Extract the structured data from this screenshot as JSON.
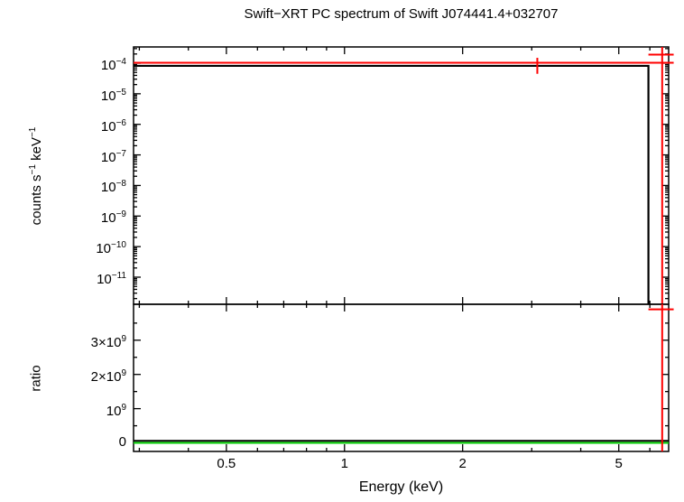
{
  "title": "Swift−XRT PC spectrum of Swift J074441.4+032707",
  "colors": {
    "frame": "#000000",
    "data": "#000000",
    "model": "#ff0000",
    "reference": "#00cc00"
  },
  "chart_data": {
    "type": "line",
    "title": "Swift−XRT PC spectrum of Swift J074441.4+032707",
    "xlabel": "Energy (keV)",
    "xscale": "log",
    "xlim": [
      0.29,
      6.7
    ],
    "xticks_major": [
      {
        "v": 0.5,
        "label": "0.5"
      },
      {
        "v": 1,
        "label": "1"
      },
      {
        "v": 2,
        "label": "2"
      },
      {
        "v": 5,
        "label": "5"
      }
    ],
    "xticks_minor": [
      0.3,
      0.4,
      0.6,
      0.7,
      0.8,
      0.9,
      3,
      4,
      6
    ],
    "panels": [
      {
        "id": "spectrum",
        "ylabel_parts": [
          "counts s",
          "−1",
          " keV",
          "−1"
        ],
        "yscale": "log",
        "ylim": [
          1.3e-12,
          0.00034
        ],
        "yticks_major": [
          {
            "v": 0.0001,
            "label_parts": [
              "10",
              "−4"
            ]
          },
          {
            "v": 1e-05,
            "label_parts": [
              "10",
              "−5"
            ]
          },
          {
            "v": 1e-06,
            "label_parts": [
              "10",
              "−6"
            ]
          },
          {
            "v": 1e-07,
            "label_parts": [
              "10",
              "−7"
            ]
          },
          {
            "v": 1e-08,
            "label_parts": [
              "10",
              "−8"
            ]
          },
          {
            "v": 1e-09,
            "label_parts": [
              "10",
              "−9"
            ]
          },
          {
            "v": 1e-10,
            "label_parts": [
              "10",
              "−10"
            ]
          },
          {
            "v": 1e-11,
            "label_parts": [
              "10",
              "−11"
            ]
          }
        ],
        "series": [
          {
            "name": "source-spectrum-line",
            "color": "data",
            "width": 2.2,
            "points": [
              [
                0.29,
                8.2e-05
              ],
              [
                5.95,
                8.2e-05
              ],
              [
                5.95,
                1.35e-12
              ]
            ]
          },
          {
            "name": "model-line",
            "color": "model",
            "width": 2,
            "points": [
              [
                0.29,
                0.000103
              ],
              [
                6.9,
                0.000103
              ]
            ]
          },
          {
            "name": "model-errorbar-3kev",
            "color": "model",
            "width": 2,
            "points": [
              [
                3.1,
                4.5e-05
              ],
              [
                3.1,
                0.00015
              ]
            ]
          },
          {
            "name": "last-bin-vertical",
            "color": "model",
            "width": 2,
            "points": [
              [
                6.45,
                0.00034
              ],
              [
                6.45,
                1.3e-12
              ]
            ]
          },
          {
            "name": "last-bin-cap",
            "color": "model",
            "width": 2,
            "points": [
              [
                5.95,
                0.00019
              ],
              [
                6.9,
                0.00019
              ]
            ]
          }
        ]
      },
      {
        "id": "ratio",
        "ylabel_parts": [
          "ratio"
        ],
        "yscale": "linear",
        "ylim": [
          -250000000.0,
          4050000000.0
        ],
        "yticks_major": [
          {
            "v": 0,
            "label_parts": [
              "0"
            ]
          },
          {
            "v": 1000000000.0,
            "label_parts": [
              "10",
              "9"
            ]
          },
          {
            "v": 2000000000.0,
            "label_parts": [
              "2×10",
              "9"
            ]
          },
          {
            "v": 3000000000.0,
            "label_parts": [
              "3×10",
              "9"
            ]
          }
        ],
        "yticks_minor": [
          500000000.0,
          1500000000.0,
          2500000000.0,
          3500000000.0
        ],
        "series": [
          {
            "name": "ratio-unity-line",
            "color": "reference",
            "width": 2,
            "points": [
              [
                0.29,
                0
              ],
              [
                6.7,
                0
              ]
            ]
          },
          {
            "name": "ratio-data-line",
            "color": "data",
            "width": 2,
            "points": [
              [
                0.29,
                60000000.0
              ],
              [
                6.7,
                60000000.0
              ]
            ]
          },
          {
            "name": "ratio-last-bin-vertical",
            "color": "model",
            "width": 2,
            "points": [
              [
                6.45,
                -250000000.0
              ],
              [
                6.45,
                4050000000.0
              ]
            ]
          },
          {
            "name": "ratio-last-bin-cap",
            "color": "model",
            "width": 2,
            "points": [
              [
                5.95,
                3900000000.0
              ],
              [
                6.9,
                3900000000.0
              ]
            ]
          }
        ]
      }
    ]
  }
}
